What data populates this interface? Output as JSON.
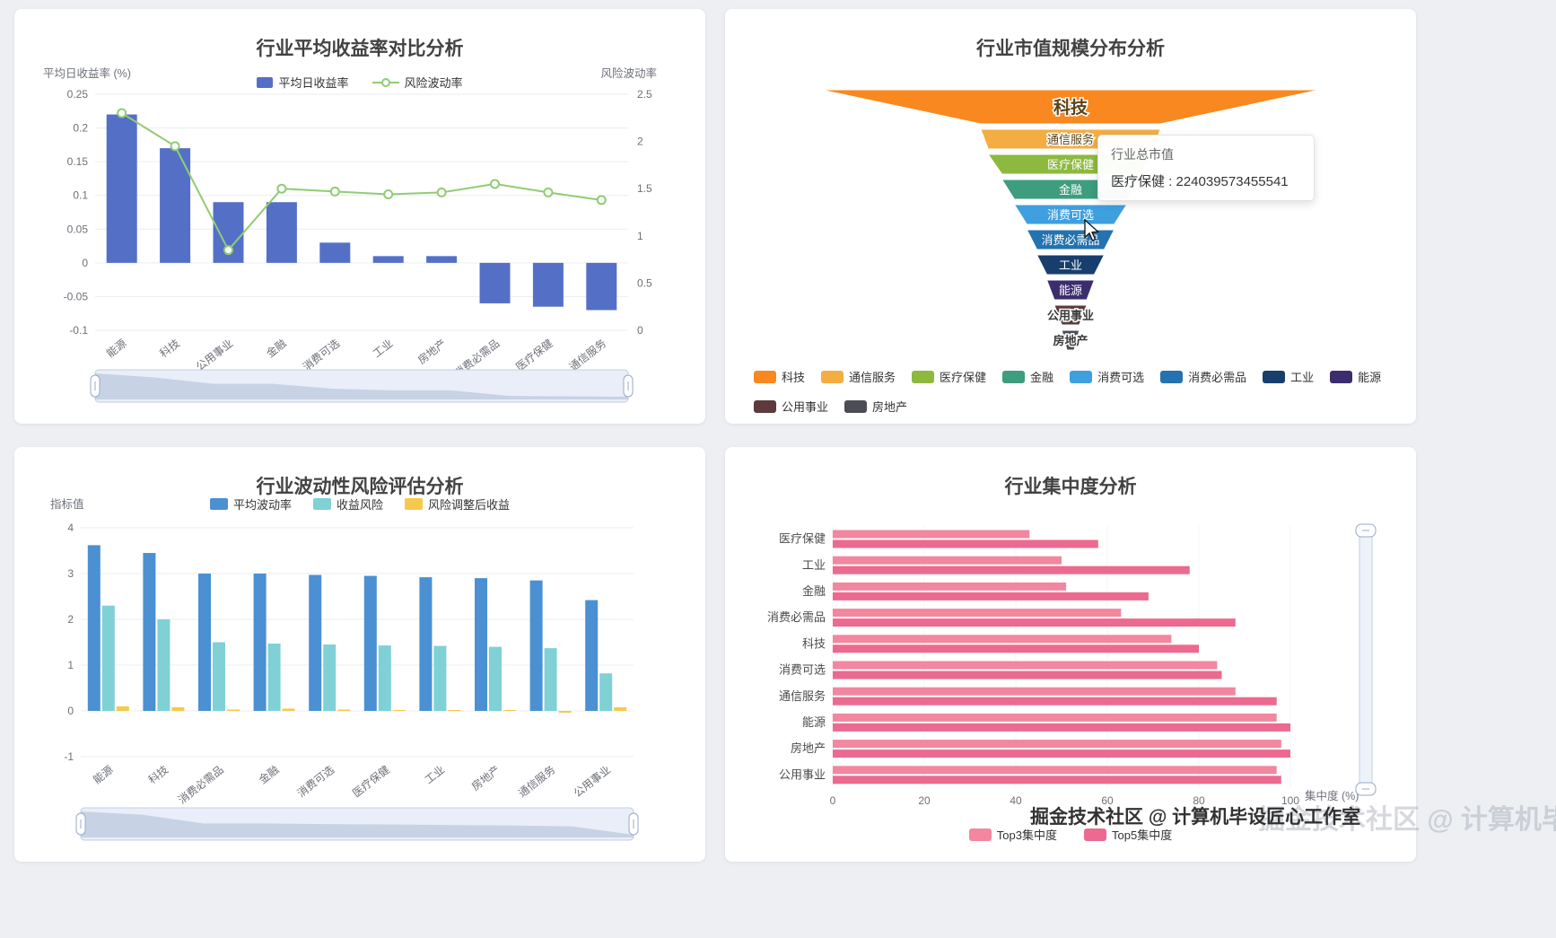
{
  "page": {
    "background": "#edeff3"
  },
  "watermark": {
    "text": "掘金技术社区 @ 计算机毕设匠心工作室"
  },
  "chart_data": [
    {
      "type": "bar",
      "title": "行业平均收益率对比分析",
      "categories": [
        "能源",
        "科技",
        "公用事业",
        "金融",
        "消费可选",
        "工业",
        "房地产",
        "消费必需品",
        "医疗保健",
        "通信服务"
      ],
      "series": [
        {
          "name": "平均日收益率",
          "type": "bar",
          "axis": "left",
          "color": "#5470c6",
          "values": [
            0.22,
            0.17,
            0.09,
            0.09,
            0.03,
            0.01,
            0.01,
            -0.06,
            -0.065,
            -0.07
          ]
        },
        {
          "name": "风险波动率",
          "type": "line",
          "axis": "right",
          "color": "#91cc75",
          "values": [
            2.3,
            1.95,
            0.85,
            1.5,
            1.47,
            1.44,
            1.46,
            1.55,
            1.46,
            1.38
          ]
        }
      ],
      "y_axis_left": {
        "name": "平均日收益率 (%)",
        "min": -0.1,
        "max": 0.25,
        "step": 0.05
      },
      "y_axis_right": {
        "name": "风险波动率",
        "min": 0,
        "max": 2.5,
        "step": 0.5
      },
      "grid": true,
      "legend_position": "top",
      "datazoom": "horizontal"
    },
    {
      "type": "funnel",
      "title": "行业市值规模分布分析",
      "items": [
        {
          "name": "科技",
          "color": "#f8881f",
          "relative_width": 100
        },
        {
          "name": "通信服务",
          "color": "#f4ad42",
          "relative_width": 36
        },
        {
          "name": "医疗保健",
          "color": "#8eb93f",
          "relative_width": 33
        },
        {
          "name": "金融",
          "color": "#3d9d7e",
          "relative_width": 27.5
        },
        {
          "name": "消费可选",
          "color": "#3f9fdf",
          "relative_width": 22.5
        },
        {
          "name": "消费必需品",
          "color": "#2472ae",
          "relative_width": 17.5
        },
        {
          "name": "工业",
          "color": "#173e6d",
          "relative_width": 13.5
        },
        {
          "name": "能源",
          "color": "#3c2d6e",
          "relative_width": 9.5
        },
        {
          "name": "公用事业",
          "color": "#5d3a3c",
          "relative_width": 6.5
        },
        {
          "name": "房地产",
          "color": "#4c4c55",
          "relative_width": 3.5
        }
      ],
      "tooltip": {
        "title": "行业总市值",
        "line": "医疗保健 : 224039573455541"
      },
      "legend_position": "bottom"
    },
    {
      "type": "bar",
      "title": "行业波动性风险评估分析",
      "categories": [
        "能源",
        "科技",
        "消费必需品",
        "金融",
        "消费可选",
        "医疗保健",
        "工业",
        "房地产",
        "通信服务",
        "公用事业"
      ],
      "series": [
        {
          "name": "平均波动率",
          "color": "#4a90d2",
          "values": [
            3.62,
            3.45,
            3.0,
            3.0,
            2.97,
            2.95,
            2.92,
            2.9,
            2.85,
            2.42
          ]
        },
        {
          "name": "收益风险",
          "color": "#7fd1d6",
          "values": [
            2.3,
            2.0,
            1.5,
            1.47,
            1.45,
            1.43,
            1.42,
            1.4,
            1.37,
            0.82
          ]
        },
        {
          "name": "风险调整后收益",
          "color": "#f6c94c",
          "values": [
            0.1,
            0.08,
            0.03,
            0.05,
            0.03,
            0.02,
            0.02,
            0.02,
            -0.04,
            0.08
          ]
        }
      ],
      "y_axis": {
        "name": "指标值",
        "min": -1,
        "max": 4,
        "step": 1
      },
      "grid": true,
      "legend_position": "top",
      "datazoom": "horizontal"
    },
    {
      "type": "bar",
      "orientation": "horizontal",
      "title": "行业集中度分析",
      "categories": [
        "医疗保健",
        "工业",
        "金融",
        "消费必需品",
        "科技",
        "消费可选",
        "通信服务",
        "能源",
        "房地产",
        "公用事业"
      ],
      "series": [
        {
          "name": "Top3集中度",
          "color": "#f2879f",
          "values": [
            43,
            50,
            51,
            63,
            74,
            84,
            88,
            97,
            98,
            97
          ]
        },
        {
          "name": "Top5集中度",
          "color": "#ec6a8f",
          "values": [
            58,
            78,
            69,
            88,
            80,
            85,
            97,
            100,
            100,
            98
          ]
        }
      ],
      "x_axis": {
        "name": "集中度 (%)",
        "min": 0,
        "max": 100,
        "step": 20
      },
      "legend_position": "bottom",
      "datazoom": "vertical"
    }
  ]
}
